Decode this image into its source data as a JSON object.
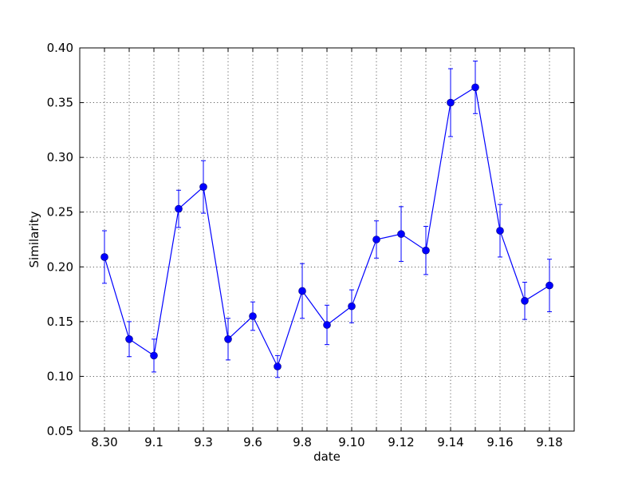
{
  "chart_data": {
    "type": "line",
    "title": "",
    "xlabel": "date",
    "ylabel": "Similarity",
    "ylim": [
      0.05,
      0.4
    ],
    "yticks": [
      "0.05",
      "0.10",
      "0.15",
      "0.20",
      "0.25",
      "0.30",
      "0.35",
      "0.40"
    ],
    "xtick_labels": [
      "8.30",
      "9.1",
      "9.3",
      "9.6",
      "9.8",
      "9.10",
      "9.12",
      "9.14",
      "9.16",
      "9.18"
    ],
    "grid": true,
    "marker": "circle",
    "color": "#0000ff",
    "points": [
      {
        "y": 0.209,
        "err": 0.024
      },
      {
        "y": 0.134,
        "err": 0.016
      },
      {
        "y": 0.119,
        "err": 0.015
      },
      {
        "y": 0.253,
        "err": 0.017
      },
      {
        "y": 0.273,
        "err": 0.024
      },
      {
        "y": 0.134,
        "err": 0.019
      },
      {
        "y": 0.155,
        "err": 0.013
      },
      {
        "y": 0.109,
        "err": 0.01
      },
      {
        "y": 0.178,
        "err": 0.025
      },
      {
        "y": 0.147,
        "err": 0.018
      },
      {
        "y": 0.164,
        "err": 0.015
      },
      {
        "y": 0.225,
        "err": 0.017
      },
      {
        "y": 0.23,
        "err": 0.025
      },
      {
        "y": 0.215,
        "err": 0.022
      },
      {
        "y": 0.35,
        "err": 0.031
      },
      {
        "y": 0.364,
        "err": 0.024
      },
      {
        "y": 0.233,
        "err": 0.024
      },
      {
        "y": 0.169,
        "err": 0.017
      },
      {
        "y": 0.183,
        "err": 0.024
      }
    ]
  }
}
